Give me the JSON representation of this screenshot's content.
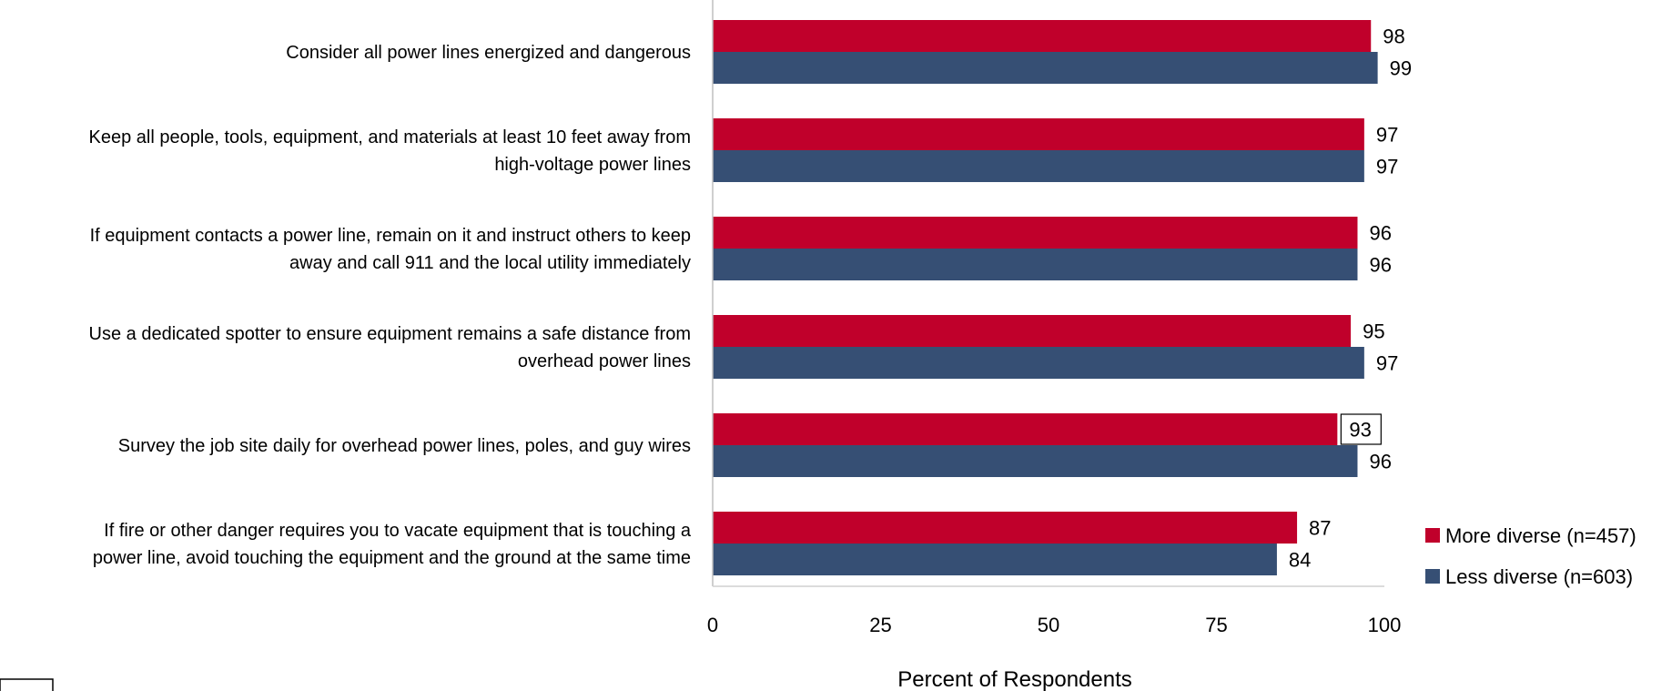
{
  "chart_data": {
    "type": "bar",
    "orientation": "horizontal",
    "title": "",
    "categories": [
      [
        "Consider all power lines energized and dangerous"
      ],
      [
        "Keep all people, tools, equipment, and materials at least 10 feet away from",
        "high-voltage power lines"
      ],
      [
        "If equipment contacts a power line, remain on it and instruct others to keep",
        "away and call 911 and the local utility immediately"
      ],
      [
        "Use a dedicated spotter to ensure equipment remains a safe distance from",
        "overhead power lines"
      ],
      [
        "Survey the job site daily for overhead power lines, poles, and guy wires"
      ],
      [
        "If fire or other danger requires you to vacate equipment that is touching a",
        "power line, avoid touching the equipment and the ground at the same time"
      ]
    ],
    "series": [
      {
        "name": "More diverse (n=457)",
        "color": "#c0002b",
        "values": [
          98,
          97,
          96,
          95,
          93,
          87
        ],
        "boxed_labels": [
          4
        ]
      },
      {
        "name": "Less diverse (n=603)",
        "color": "#364f74",
        "values": [
          99,
          97,
          96,
          97,
          96,
          84
        ]
      }
    ],
    "xlabel": "Percent of Respondents",
    "xlim": [
      0,
      100
    ],
    "xticks": [
      0,
      25,
      50,
      75,
      100
    ],
    "grid": false,
    "legend_position": "right"
  }
}
